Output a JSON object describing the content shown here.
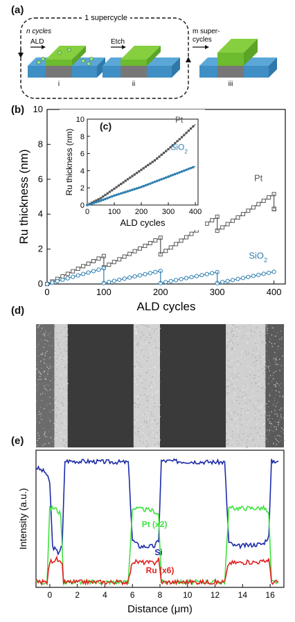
{
  "figure": {
    "panel_labels": {
      "a": "(a)",
      "b": "(b)",
      "c": "(c)",
      "d": "(d)",
      "e": "(e)"
    },
    "schematic": {
      "supercycle_label": "1 supercycle",
      "n_cycles": "n cycles",
      "ald": "ALD",
      "etch": "Etch",
      "m_super": "m super-",
      "cycles": "cycles",
      "step_labels": [
        "i",
        "ii",
        "iii"
      ],
      "colors": {
        "substrate": "#3f8fc4",
        "pt": "#6dbb2f",
        "gray": "#7f7f7f",
        "nucleus": "#9be08a"
      }
    }
  },
  "chart_data": [
    {
      "id": "b",
      "type": "line",
      "xlabel": "ALD cycles",
      "ylabel": "Ru thickness (nm)",
      "xlim": [
        0,
        420
      ],
      "ylim": [
        0,
        10
      ],
      "xticks": [
        0,
        100,
        200,
        300,
        400
      ],
      "yticks": [
        0,
        2,
        4,
        6,
        8,
        10
      ],
      "series": [
        {
          "name": "Pt",
          "color": "#555555",
          "marker": "square",
          "segments": [
            [
              [
                0,
                0
              ],
              [
                100,
                1.6
              ]
            ],
            [
              [
                100,
                0.95
              ],
              [
                200,
                2.65
              ]
            ],
            [
              [
                200,
                1.7
              ],
              [
                300,
                3.85
              ]
            ],
            [
              [
                300,
                3.05
              ],
              [
                400,
                5.15
              ]
            ],
            [
              [
                400,
                4.3
              ],
              [
                400,
                4.3
              ]
            ]
          ]
        },
        {
          "name": "SiO2",
          "color": "#2e7fb0",
          "marker": "circle",
          "segments": [
            [
              [
                0,
                0
              ],
              [
                100,
                0.9
              ]
            ],
            [
              [
                100,
                0.05
              ],
              [
                200,
                0.75
              ]
            ],
            [
              [
                200,
                0.05
              ],
              [
                300,
                0.68
              ]
            ],
            [
              [
                300,
                0.05
              ],
              [
                400,
                0.7
              ]
            ]
          ]
        }
      ],
      "annotations": [
        "Pt",
        "SiO2"
      ]
    },
    {
      "id": "c",
      "type": "line",
      "xlabel": "ALD cycles",
      "ylabel": "Ru thickness (nm)",
      "xlim": [
        0,
        410
      ],
      "ylim": [
        0,
        10
      ],
      "xticks": [
        0,
        100,
        200,
        300,
        400
      ],
      "yticks": [
        0,
        2,
        4,
        6,
        8,
        10
      ],
      "series": [
        {
          "name": "Pt",
          "color": "#555555",
          "marker": "square",
          "points": [
            [
              0,
              0
            ],
            [
              50,
              0.8
            ],
            [
              100,
              1.9
            ],
            [
              150,
              3.0
            ],
            [
              200,
              4.1
            ],
            [
              250,
              5.2
            ],
            [
              300,
              6.5
            ],
            [
              350,
              7.9
            ],
            [
              400,
              9.4
            ]
          ]
        },
        {
          "name": "SiO2",
          "color": "#2e7fb0",
          "marker": "circle",
          "points": [
            [
              0,
              0
            ],
            [
              50,
              0.5
            ],
            [
              100,
              1.1
            ],
            [
              150,
              1.6
            ],
            [
              200,
              2.1
            ],
            [
              250,
              2.7
            ],
            [
              300,
              3.3
            ],
            [
              350,
              3.9
            ],
            [
              400,
              4.5
            ]
          ]
        }
      ],
      "annotations": [
        "Pt",
        "SiO2"
      ]
    },
    {
      "id": "e",
      "type": "line",
      "xlabel": "Distance (μm)",
      "ylabel": "Intensity (a.u.)",
      "xlim": [
        -1,
        17
      ],
      "xticks": [
        0,
        2,
        4,
        6,
        8,
        10,
        12,
        14,
        16
      ],
      "series": [
        {
          "name": "Si",
          "color": "#1a2aa8",
          "points": [
            [
              -1,
              0.92
            ],
            [
              -0.3,
              0.88
            ],
            [
              0,
              0.8
            ],
            [
              0.2,
              0.3
            ],
            [
              0.6,
              0.25
            ],
            [
              0.9,
              0.3
            ],
            [
              1.1,
              0.97
            ],
            [
              5.7,
              0.96
            ],
            [
              6.0,
              0.35
            ],
            [
              6.5,
              0.3
            ],
            [
              7.6,
              0.3
            ],
            [
              7.9,
              0.35
            ],
            [
              8.1,
              0.97
            ],
            [
              12.7,
              0.96
            ],
            [
              13.0,
              0.33
            ],
            [
              13.5,
              0.3
            ],
            [
              15.5,
              0.32
            ],
            [
              15.9,
              0.38
            ],
            [
              16.1,
              0.97
            ],
            [
              16.6,
              0.97
            ]
          ]
        },
        {
          "name": "Pt (x2)",
          "color": "#3fe23f",
          "points": [
            [
              -1,
              0.02
            ],
            [
              -0.2,
              0.02
            ],
            [
              0,
              0.6
            ],
            [
              0.4,
              0.6
            ],
            [
              0.8,
              0.55
            ],
            [
              1.0,
              0.02
            ],
            [
              5.7,
              0.02
            ],
            [
              6.0,
              0.6
            ],
            [
              7.5,
              0.58
            ],
            [
              7.9,
              0.55
            ],
            [
              8.1,
              0.02
            ],
            [
              12.7,
              0.02
            ],
            [
              13.0,
              0.6
            ],
            [
              15.6,
              0.6
            ],
            [
              15.9,
              0.55
            ],
            [
              16.1,
              0.02
            ],
            [
              16.6,
              0.02
            ]
          ]
        },
        {
          "name": "Ru (x6)",
          "color": "#e02020",
          "points": [
            [
              -1,
              0.02
            ],
            [
              -0.2,
              0.02
            ],
            [
              0,
              0.18
            ],
            [
              0.5,
              0.2
            ],
            [
              0.9,
              0.15
            ],
            [
              1.0,
              0.02
            ],
            [
              5.7,
              0.02
            ],
            [
              6.0,
              0.18
            ],
            [
              7.6,
              0.17
            ],
            [
              7.9,
              0.2
            ],
            [
              8.1,
              0.02
            ],
            [
              12.7,
              0.02
            ],
            [
              13.0,
              0.17
            ],
            [
              15.6,
              0.18
            ],
            [
              15.9,
              0.2
            ],
            [
              16.1,
              0.02
            ],
            [
              16.6,
              0.02
            ]
          ]
        }
      ],
      "annotations": [
        "Pt (x2)",
        "Si",
        "Ru (x6)"
      ]
    }
  ],
  "sem_image": {
    "description_bands": [
      {
        "x0": -1.4,
        "x1": 0,
        "tone": "#6c6c6c"
      },
      {
        "x0": 0,
        "x1": 1,
        "tone": "#cfcfcf"
      },
      {
        "x0": 1,
        "x1": 6,
        "tone": "#3a3a3a"
      },
      {
        "x0": 6,
        "x1": 8,
        "tone": "#d2d2d2"
      },
      {
        "x0": 8,
        "x1": 13,
        "tone": "#3a3a3a"
      },
      {
        "x0": 13,
        "x1": 16,
        "tone": "#d0d0d0"
      },
      {
        "x0": 16,
        "x1": 17.4,
        "tone": "#5a5a5a"
      }
    ]
  }
}
